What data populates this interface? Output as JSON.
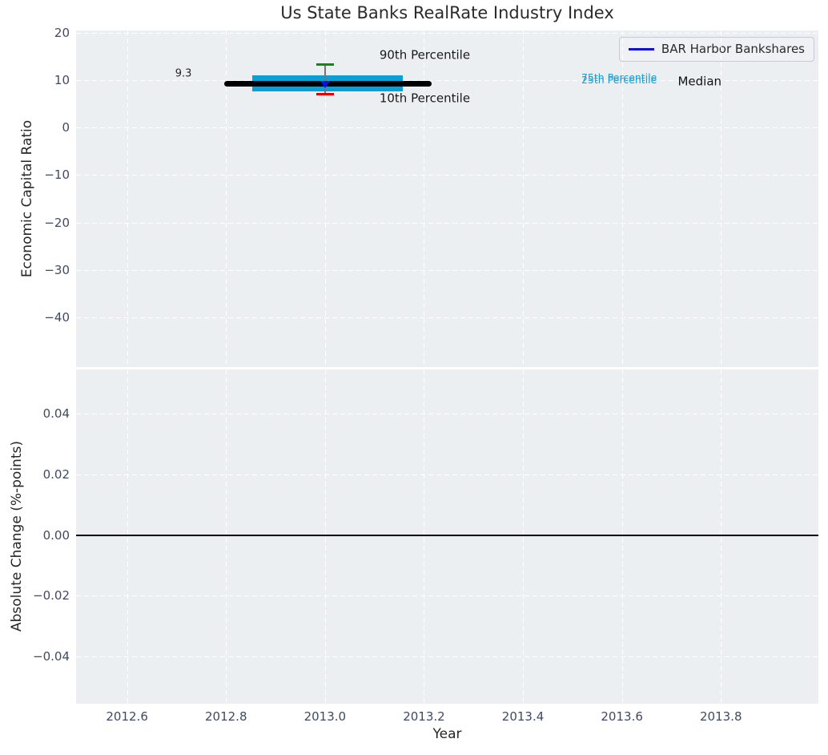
{
  "chart_data": {
    "type": "box-whisker-timeline",
    "title": "Us State Banks RealRate Industry Index",
    "xlim": [
      2012.497,
      2013.997
    ],
    "x_axis": {
      "label": "Year",
      "ticks": [
        {
          "v": 2012.6,
          "label": "2012.6"
        },
        {
          "v": 2012.8,
          "label": "2012.8"
        },
        {
          "v": 2013.0,
          "label": "2013.0"
        },
        {
          "v": 2013.2,
          "label": "2013.2"
        },
        {
          "v": 2013.4,
          "label": "2013.4"
        },
        {
          "v": 2013.6,
          "label": "2013.6"
        },
        {
          "v": 2013.8,
          "label": "2013.8"
        }
      ]
    },
    "legend": {
      "entries": [
        {
          "label": "BAR Harbor Bankshares",
          "line_color": "#0f0fd9"
        }
      ]
    },
    "panels": [
      {
        "name": "economic-capital-ratio",
        "ylabel": "Economic Capital Ratio",
        "ylim": [
          -50.5,
          20.5
        ],
        "yticks": [
          {
            "v": 20,
            "label": "20"
          },
          {
            "v": 10,
            "label": "10"
          },
          {
            "v": 0,
            "label": "0"
          },
          {
            "v": -10,
            "label": "−10"
          },
          {
            "v": -20,
            "label": "−20"
          },
          {
            "v": -30,
            "label": "−30"
          },
          {
            "v": -40,
            "label": "−40"
          }
        ],
        "box": {
          "year": 2013.0,
          "median": 9.3,
          "p75": 11.1,
          "p25": 7.7,
          "p90": 13.4,
          "p10": 7.0,
          "median_line_span": [
            2012.796,
            2013.215
          ],
          "band_span": [
            2012.853,
            2013.158
          ],
          "cap_halfwidth": 0.018
        },
        "company": {
          "name": "BAR Harbor Bankshares",
          "year": 2013.0,
          "value": 9.3,
          "marker": "triangle-down",
          "color": "#0f0fd9"
        },
        "annotations": [
          {
            "text": "9.3",
            "x": 2012.714,
            "y": 11.4,
            "size": 13,
            "color": "#262626",
            "align": "center"
          },
          {
            "text": "90th Percentile",
            "x": 2013.11,
            "y": 15.3,
            "size": 15,
            "color": "#1a1a1a",
            "align": "left"
          },
          {
            "text": "10th Percentile",
            "x": 2013.11,
            "y": 6.2,
            "size": 15,
            "color": "#1a1a1a",
            "align": "left"
          },
          {
            "text": "75th Percentile",
            "x": 2013.518,
            "y": 10.6,
            "size": 12.5,
            "color": "#189fd4",
            "align": "left"
          },
          {
            "text": "25th Percentile",
            "x": 2013.518,
            "y": 10.0,
            "size": 12.5,
            "color": "#189fd4",
            "align": "left"
          },
          {
            "text": "Median",
            "x": 2013.713,
            "y": 9.7,
            "size": 15,
            "color": "#111111",
            "align": "left"
          }
        ]
      },
      {
        "name": "absolute-change",
        "ylabel": "Absolute Change (%-points)",
        "ylim": [
          -0.0555,
          0.0545
        ],
        "yticks": [
          {
            "v": 0.04,
            "label": "0.04"
          },
          {
            "v": 0.02,
            "label": "0.02"
          },
          {
            "v": 0.0,
            "label": "0.00"
          },
          {
            "v": -0.02,
            "label": "−0.02"
          },
          {
            "v": -0.04,
            "label": "−0.04"
          }
        ],
        "zero_line": {
          "v": 0.0,
          "color": "#000000"
        }
      }
    ],
    "colors": {
      "axes_background": "#eceff1",
      "grid": "#ffffff",
      "tick_labels": "#3f4a63",
      "band": "#0c9fd4",
      "median_line": "#000000",
      "whisker": "#757575",
      "p90_cap": "#0e8a0e",
      "p10_cap": "#e00000",
      "company_marker": "#0f0fd9"
    }
  }
}
